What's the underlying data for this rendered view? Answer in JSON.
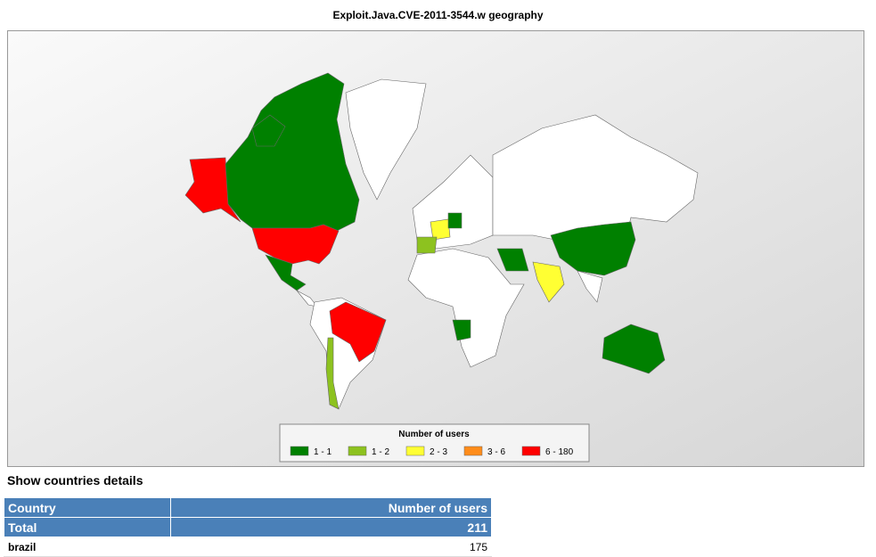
{
  "header": {
    "title": "Exploit.Java.CVE-2011-3544.w  geography"
  },
  "legend": {
    "title": "Number of users",
    "items": [
      {
        "label": "1 - 1",
        "color": "#008000"
      },
      {
        "label": "1 - 2",
        "color": "#8dc21f"
      },
      {
        "label": "2 - 3",
        "color": "#ffff33"
      },
      {
        "label": "3 - 6",
        "color": "#ff8c1a"
      },
      {
        "label": "6 - 180",
        "color": "#ff0000"
      }
    ]
  },
  "section": {
    "title": "Show countries details"
  },
  "table": {
    "columns": [
      "Country",
      "Number of users"
    ],
    "total": {
      "label": "Total",
      "value": 211
    },
    "rows": [
      [
        "brazil",
        175
      ]
    ]
  }
}
